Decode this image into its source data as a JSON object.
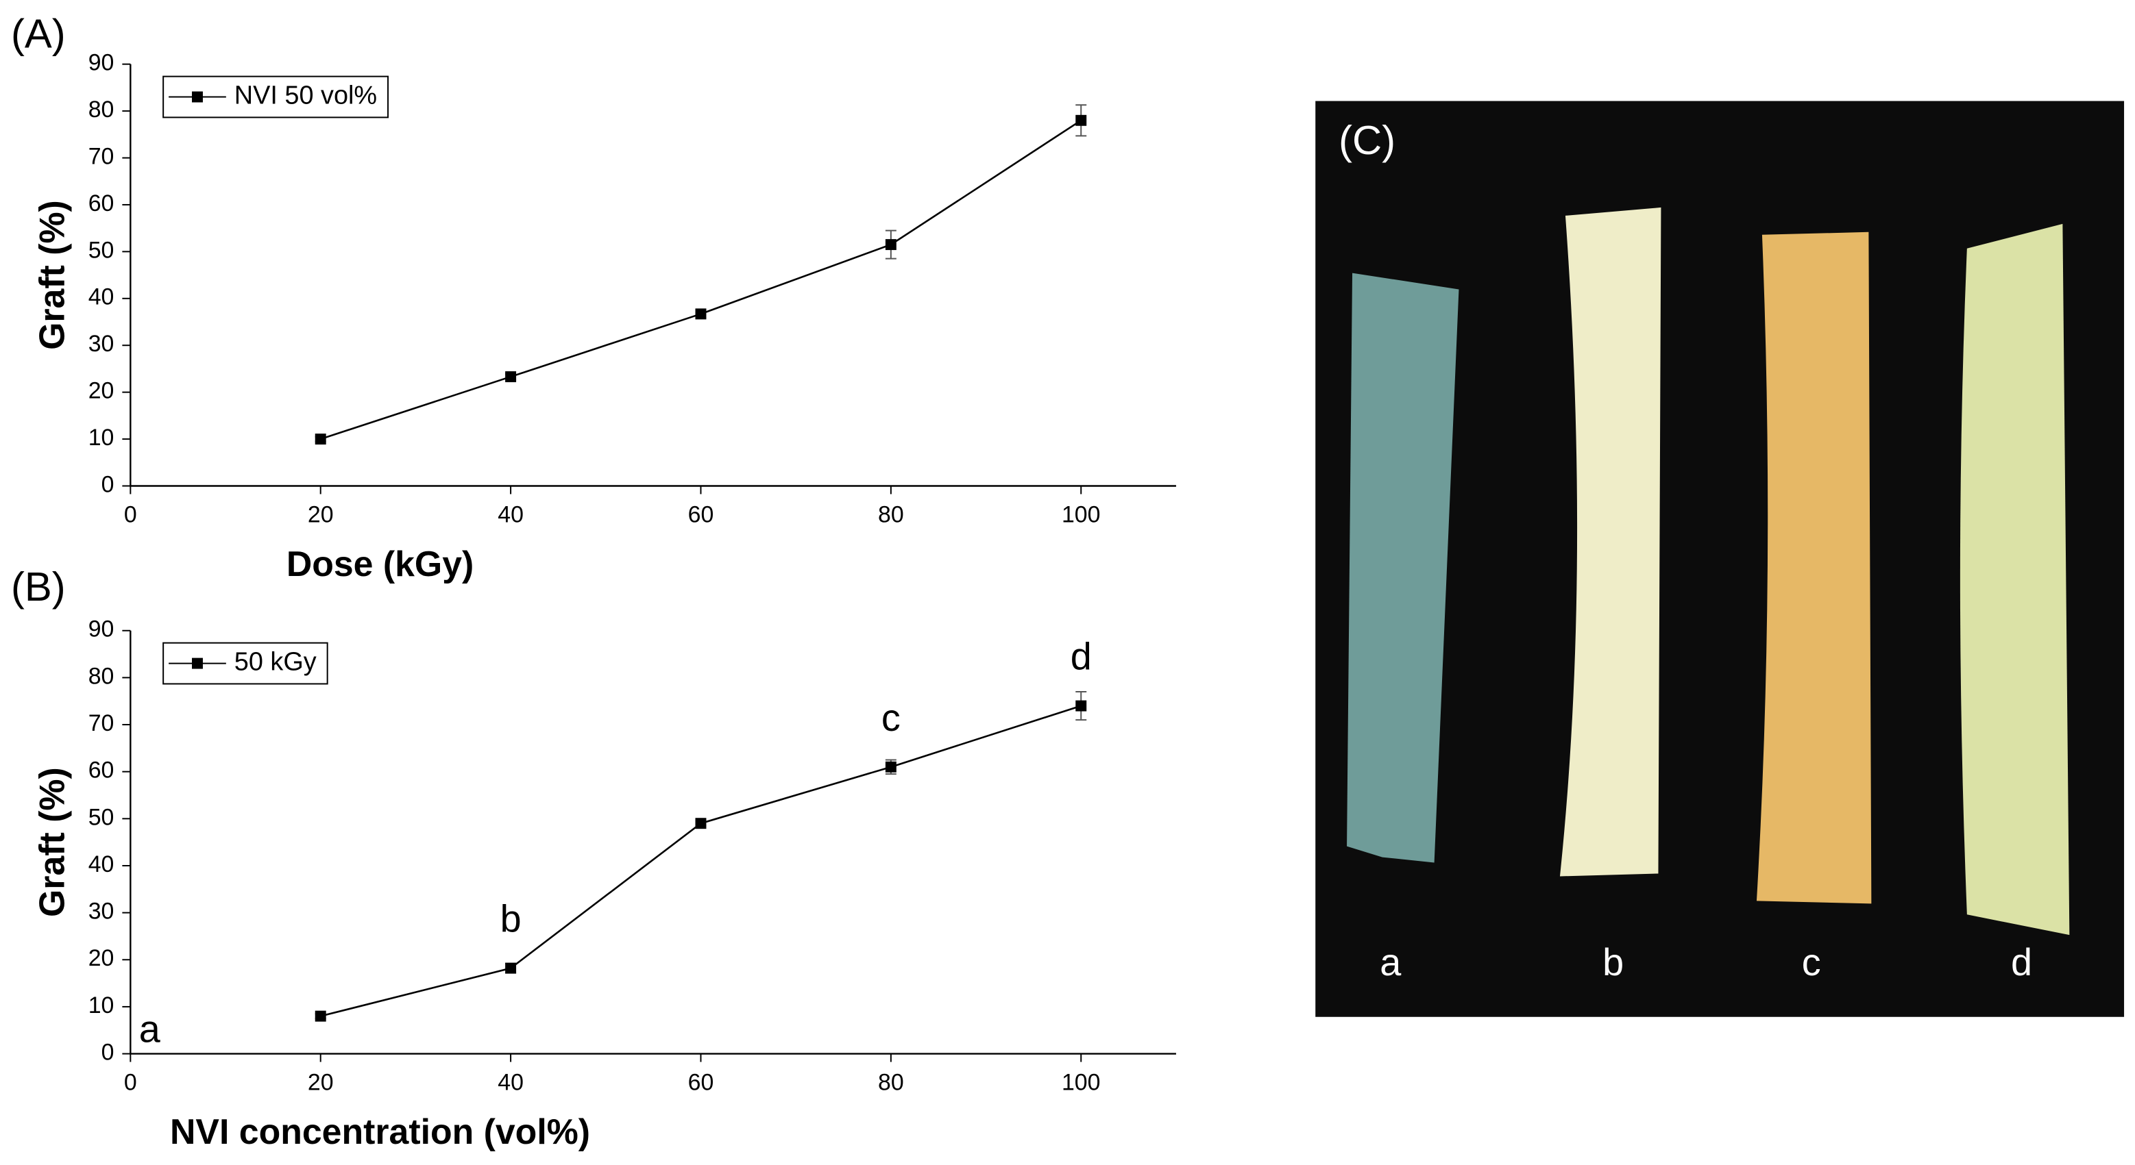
{
  "chart_data": [
    {
      "type": "line",
      "title": "(A)",
      "x_label": "Dose (kGy)",
      "y_label": "Graft (%)",
      "x": [
        20,
        40,
        60,
        80,
        100
      ],
      "series": [
        {
          "name": "NVI 50 vol%",
          "color": "#000000",
          "values": [
            10,
            23.3,
            36.7,
            51.5,
            78
          ],
          "errors": [
            0.5,
            0.6,
            0.8,
            3,
            3.3
          ]
        }
      ],
      "xlim": [
        0,
        110
      ],
      "xticks": [
        0,
        20,
        40,
        60,
        80,
        100
      ],
      "ylim": [
        0,
        90
      ],
      "yticks": [
        0,
        10,
        20,
        30,
        40,
        50,
        60,
        70,
        80,
        90
      ],
      "legend": "upper left"
    },
    {
      "type": "line",
      "title": "(B)",
      "x_label": "NVI concentration (vol%)",
      "y_label": "Graft (%)",
      "x": [
        0,
        20,
        40,
        60,
        80,
        100
      ],
      "series": [
        {
          "name": "50 kGy",
          "color": "#000000",
          "values": [
            null,
            8,
            18.2,
            49,
            61,
            74
          ],
          "errors": [
            null,
            0.5,
            1,
            0.5,
            1.5,
            3
          ]
        }
      ],
      "point_labels": [
        "a",
        null,
        "b",
        null,
        "c",
        "d"
      ],
      "xlim": [
        0,
        110
      ],
      "xticks": [
        0,
        20,
        40,
        60,
        80,
        100
      ],
      "ylim": [
        0,
        90
      ],
      "yticks": [
        0,
        10,
        20,
        30,
        40,
        50,
        60,
        70,
        80,
        90
      ],
      "legend": "upper left"
    }
  ],
  "photo": {
    "label": "(C)",
    "samples": [
      "a",
      "b",
      "c",
      "d"
    ]
  }
}
